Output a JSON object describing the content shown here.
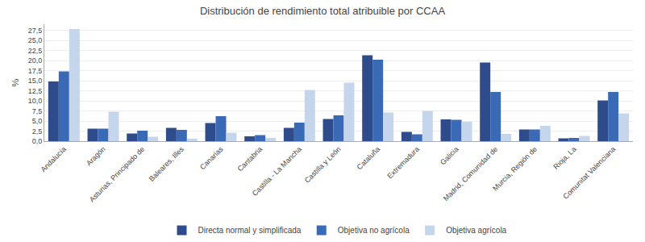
{
  "chart_data": {
    "type": "bar",
    "title": "Distribución de rendimiento total atribuible por CCAA",
    "ylabel": "%",
    "categories": [
      "Andalucía",
      "Aragón",
      "Asturias, Principado de",
      "Baleares, Illes",
      "Canarias",
      "Cantabria",
      "Castilla - La Mancha",
      "Castilla y León",
      "Cataluña",
      "Extremadura",
      "Galicia",
      "Madrid, Comunidad de",
      "Murcia, Región de",
      "Rioja, La",
      "Comunitat Valenciana"
    ],
    "series": [
      {
        "name": "Directa normal y simplificada",
        "color": "#2E4B8C",
        "values": [
          14.8,
          3.1,
          1.9,
          3.3,
          4.5,
          1.2,
          3.3,
          5.5,
          21.3,
          2.3,
          5.4,
          19.5,
          2.9,
          0.7,
          10.1
        ]
      },
      {
        "name": "Objetiva no agrícola",
        "color": "#3A6AB5",
        "values": [
          17.3,
          3.1,
          2.6,
          2.8,
          6.2,
          1.5,
          4.6,
          6.4,
          20.2,
          1.7,
          5.3,
          12.2,
          2.9,
          0.8,
          12.2
        ]
      },
      {
        "name": "Objetiva agrícola",
        "color": "#C5D5EC",
        "values": [
          27.8,
          7.3,
          1.1,
          0.6,
          2.1,
          0.8,
          12.7,
          14.5,
          7.1,
          7.5,
          4.8,
          1.8,
          3.8,
          1.3,
          6.9
        ]
      }
    ],
    "ylim": [
      0,
      29
    ],
    "yticks": [
      {
        "value": 0.0,
        "label": "0,0"
      },
      {
        "value": 2.5,
        "label": "2,5"
      },
      {
        "value": 5.0,
        "label": "5,0"
      },
      {
        "value": 7.5,
        "label": "7,5"
      },
      {
        "value": 10.0,
        "label": "10,0"
      },
      {
        "value": 12.5,
        "label": "12,5"
      },
      {
        "value": 15.0,
        "label": "15,0"
      },
      {
        "value": 17.5,
        "label": "17,5"
      },
      {
        "value": 20.0,
        "label": "20,0"
      },
      {
        "value": 22.5,
        "label": "22,5"
      },
      {
        "value": 25.0,
        "label": "25,0"
      },
      {
        "value": 27.5,
        "label": "27,5"
      }
    ],
    "grid": true,
    "legend": "bottom"
  }
}
